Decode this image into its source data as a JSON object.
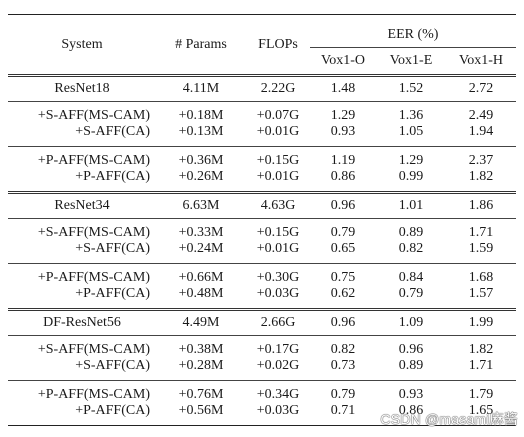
{
  "header": {
    "system": "System",
    "params": "# Params",
    "flops": "FLOPs",
    "eer": "EER (%)",
    "vox1_o": "Vox1-O",
    "vox1_e": "Vox1-E",
    "vox1_h": "Vox1-H"
  },
  "groups": [
    {
      "base": {
        "system": "ResNet18",
        "params": "4.11M",
        "flops": "2.22G",
        "o": "1.48",
        "e": "1.52",
        "h": "2.72"
      },
      "subgroups": [
        [
          {
            "system": "+S-AFF(MS-CAM)",
            "params": "+0.18M",
            "flops": "+0.07G",
            "o": "1.29",
            "e": "1.36",
            "h": "2.49"
          },
          {
            "system": "+S-AFF(CA)",
            "params": "+0.13M",
            "flops": "+0.01G",
            "o": "0.93",
            "e": "1.05",
            "h": "1.94"
          }
        ],
        [
          {
            "system": "+P-AFF(MS-CAM)",
            "params": "+0.36M",
            "flops": "+0.15G",
            "o": "1.19",
            "e": "1.29",
            "h": "2.37"
          },
          {
            "system": "+P-AFF(CA)",
            "params": "+0.26M",
            "flops": "+0.01G",
            "o": "0.86",
            "e": "0.99",
            "h": "1.82"
          }
        ]
      ]
    },
    {
      "base": {
        "system": "ResNet34",
        "params": "6.63M",
        "flops": "4.63G",
        "o": "0.96",
        "e": "1.01",
        "h": "1.86"
      },
      "subgroups": [
        [
          {
            "system": "+S-AFF(MS-CAM)",
            "params": "+0.33M",
            "flops": "+0.15G",
            "o": "0.79",
            "e": "0.89",
            "h": "1.71"
          },
          {
            "system": "+S-AFF(CA)",
            "params": "+0.24M",
            "flops": "+0.01G",
            "o": "0.65",
            "e": "0.82",
            "h": "1.59"
          }
        ],
        [
          {
            "system": "+P-AFF(MS-CAM)",
            "params": "+0.66M",
            "flops": "+0.30G",
            "o": "0.75",
            "e": "0.84",
            "h": "1.68"
          },
          {
            "system": "+P-AFF(CA)",
            "params": "+0.48M",
            "flops": "+0.03G",
            "o": "0.62",
            "e": "0.79",
            "h": "1.57"
          }
        ]
      ]
    },
    {
      "base": {
        "system": "DF-ResNet56",
        "params": "4.49M",
        "flops": "2.66G",
        "o": "0.96",
        "e": "1.09",
        "h": "1.99"
      },
      "subgroups": [
        [
          {
            "system": "+S-AFF(MS-CAM)",
            "params": "+0.38M",
            "flops": "+0.17G",
            "o": "0.82",
            "e": "0.96",
            "h": "1.82"
          },
          {
            "system": "+S-AFF(CA)",
            "params": "+0.28M",
            "flops": "+0.02G",
            "o": "0.73",
            "e": "0.89",
            "h": "1.71"
          }
        ],
        [
          {
            "system": "+P-AFF(MS-CAM)",
            "params": "+0.76M",
            "flops": "+0.34G",
            "o": "0.79",
            "e": "0.93",
            "h": "1.79"
          },
          {
            "system": "+P-AFF(CA)",
            "params": "+0.56M",
            "flops": "+0.03G",
            "o": "0.71",
            "e": "0.86",
            "h": "1.65"
          }
        ]
      ]
    }
  ],
  "watermark": "CSDN @masami麻酱"
}
